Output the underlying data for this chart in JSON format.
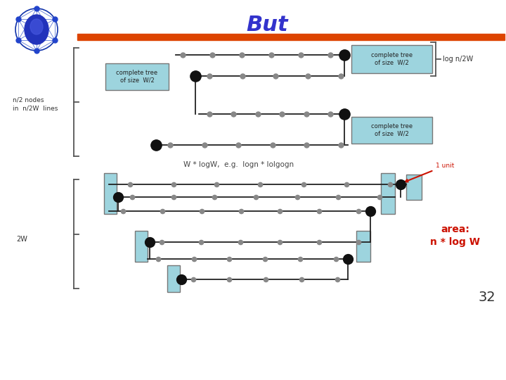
{
  "title": "But",
  "title_color": "#3333cc",
  "title_fontsize": 22,
  "bg_color": "#ffffff",
  "separator_color": "#dd4400",
  "box_color": "#9dd4de",
  "box_edge_color": "#777777",
  "line_color": "#222222",
  "small_node_color": "#888888",
  "big_node_color": "#111111",
  "label_top_left": "n/2 nodes\nin  n/2W  lines",
  "label_top_right": "log n/2W",
  "label_box_top1": "complete tree\nof size  W/2",
  "label_box_left": "complete tree\nof size  W/2",
  "label_box_bot": "complete tree\nof size  W/2",
  "label_mid": "W * logW,  e.g.  logn * lolgogn",
  "label_bot_left": "2W",
  "label_area": "area:\nn * log W",
  "label_1unit": "1 unit",
  "label_page": "32"
}
